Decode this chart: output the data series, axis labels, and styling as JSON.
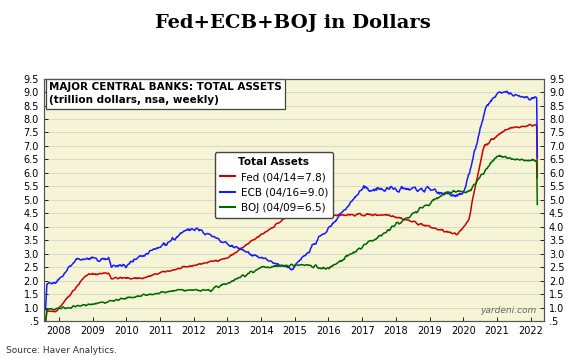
{
  "title": "Fed+ECB+BOJ in Dollars",
  "subtitle1": "MAJOR CENTRAL BANKS: TOTAL ASSETS",
  "subtitle2": "(trillion dollars, nsa, weekly)",
  "legend_title": "Total Assets",
  "legend_entries": [
    "Fed (04/14=7.8)",
    "ECB (04/16=9.0)",
    "BOJ (04/09=6.5)"
  ],
  "line_colors": [
    "#cc0000",
    "#1a1aff",
    "#006600"
  ],
  "background_color": "#f5f5d5",
  "ylim": [
    0.5,
    9.5
  ],
  "ytick_vals": [
    0.5,
    1.0,
    1.5,
    2.0,
    2.5,
    3.0,
    3.5,
    4.0,
    4.5,
    5.0,
    5.5,
    6.0,
    6.5,
    7.0,
    7.5,
    8.0,
    8.5,
    9.0,
    9.5
  ],
  "ytick_labels": [
    ".5",
    "1.0",
    "1.5",
    "2.0",
    "2.5",
    "3.0",
    "3.5",
    "4.0",
    "4.5",
    "5.0",
    "5.5",
    "6.0",
    "6.5",
    "7.0",
    "7.5",
    "8.0",
    "8.5",
    "9.0",
    "9.5"
  ],
  "xlim_start": 2007.55,
  "xlim_end": 2022.4,
  "xtick_years": [
    2008,
    2009,
    2010,
    2011,
    2012,
    2013,
    2014,
    2015,
    2016,
    2017,
    2018,
    2019,
    2020,
    2021,
    2022
  ],
  "source_text": "Source: Haver Analytics.",
  "watermark_text": "yardeni.com",
  "title_fontsize": 14,
  "axis_fontsize": 7,
  "legend_fontsize": 7.5,
  "subtitle_fontsize": 7.5
}
